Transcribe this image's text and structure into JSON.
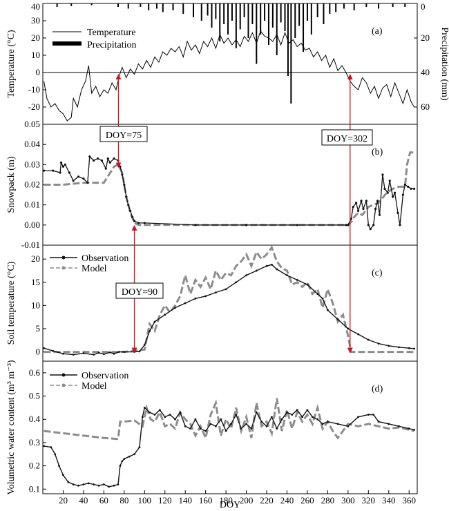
{
  "chart_data": [
    {
      "type": "line",
      "panel_label": "(a)",
      "ylabel": "Temperature (°C)",
      "y2label": "Precipitation (mm)",
      "ylim": [
        -30,
        40
      ],
      "y2lim": [
        70,
        0
      ],
      "yticks": [
        "-20",
        "-10",
        "0",
        "10",
        "20",
        "30",
        "40"
      ],
      "y2ticks": [
        "0",
        "20",
        "40",
        "60"
      ],
      "legend": [
        "Temperature",
        "Precipitation"
      ],
      "series": [
        {
          "name": "Temperature",
          "x": [
            1,
            4,
            8,
            12,
            16,
            20,
            24,
            28,
            30,
            34,
            38,
            42,
            45,
            48,
            52,
            56,
            60,
            64,
            68,
            72,
            75,
            78,
            82,
            86,
            90,
            94,
            98,
            102,
            106,
            110,
            114,
            118,
            122,
            126,
            130,
            134,
            138,
            142,
            146,
            150,
            154,
            158,
            162,
            166,
            170,
            174,
            178,
            182,
            186,
            190,
            194,
            198,
            202,
            206,
            210,
            214,
            218,
            222,
            226,
            230,
            234,
            238,
            242,
            246,
            250,
            254,
            258,
            262,
            266,
            270,
            274,
            278,
            282,
            286,
            290,
            294,
            298,
            302,
            306,
            310,
            314,
            318,
            322,
            326,
            330,
            334,
            338,
            342,
            346,
            350,
            354,
            358,
            362,
            365
          ],
          "y": [
            -5,
            -15,
            -20,
            -18,
            -22,
            -24,
            -28,
            -26,
            -15,
            -20,
            -10,
            -5,
            4,
            -12,
            -8,
            -14,
            -10,
            -12,
            -6,
            -10,
            -2,
            3,
            -3,
            2,
            -1,
            5,
            2,
            7,
            3,
            9,
            6,
            12,
            10,
            14,
            12,
            15,
            9,
            18,
            13,
            16,
            11,
            18,
            15,
            20,
            14,
            22,
            17,
            20,
            16,
            19,
            15,
            21,
            18,
            23,
            17,
            24,
            21,
            20,
            18,
            22,
            16,
            23,
            17,
            19,
            15,
            17,
            13,
            14,
            9,
            12,
            7,
            10,
            3,
            8,
            1,
            4,
            0,
            -5,
            -8,
            -10,
            -3,
            -6,
            -12,
            -8,
            -15,
            -9,
            -7,
            -14,
            -6,
            -12,
            -18,
            -10,
            -17,
            -20
          ]
        },
        {
          "name": "Precipitation",
          "x": [
            14,
            28,
            48,
            74,
            84,
            96,
            104,
            112,
            118,
            128,
            138,
            148,
            156,
            162,
            166,
            170,
            174,
            178,
            182,
            186,
            190,
            194,
            198,
            202,
            206,
            210,
            214,
            218,
            222,
            226,
            230,
            234,
            238,
            241,
            244,
            248,
            252,
            256,
            260,
            264,
            270,
            276,
            282,
            288,
            296,
            306,
            318,
            330,
            344,
            356
          ],
          "y": [
            2,
            1.5,
            1,
            2,
            3,
            2,
            4,
            3,
            5,
            4,
            6,
            8,
            10,
            7,
            14,
            9,
            22,
            12,
            18,
            10,
            26,
            15,
            8,
            20,
            12,
            35,
            18,
            10,
            24,
            14,
            30,
            11,
            16,
            42,
            58,
            20,
            13,
            28,
            10,
            18,
            8,
            12,
            6,
            5,
            3,
            4,
            2,
            3,
            2,
            2
          ]
        }
      ]
    },
    {
      "type": "line",
      "panel_label": "(b)",
      "ylabel": "Snowpack (m)",
      "ylim": [
        -0.01,
        0.05
      ],
      "yticks": [
        "-0.01",
        "0.00",
        "0.01",
        "0.02",
        "0.03",
        "0.04",
        "0.05"
      ],
      "series": [
        {
          "name": "Observation",
          "x": [
            1,
            10,
            17,
            18,
            20,
            22,
            26,
            30,
            35,
            40,
            44,
            46,
            50,
            54,
            58,
            62,
            64,
            66,
            70,
            74,
            76,
            78,
            80,
            82,
            84,
            86,
            88,
            90,
            94,
            100,
            150,
            200,
            250,
            298,
            300,
            303,
            305,
            308,
            310,
            313,
            315,
            318,
            320,
            322,
            325,
            327,
            329,
            331,
            334,
            336,
            339,
            341,
            344,
            346,
            349,
            351,
            354,
            356,
            359,
            362,
            365
          ],
          "y": [
            0.027,
            0.027,
            0.026,
            0.031,
            0.029,
            0.03,
            0.026,
            0.022,
            0.024,
            0.023,
            0.021,
            0.034,
            0.032,
            0.033,
            0.032,
            0.028,
            0.033,
            0.031,
            0.033,
            0.032,
            0.029,
            0.025,
            0.02,
            0.014,
            0.01,
            0.007,
            0.004,
            0.002,
            0.001,
            0.001,
            0.0,
            0.0,
            0.0,
            0.0,
            0.0,
            0.003,
            0.009,
            0.011,
            0.007,
            0.012,
            0.008,
            0.012,
            0.0,
            -0.002,
            0.0,
            0.008,
            0.012,
            0.005,
            0.025,
            0.018,
            0.016,
            0.022,
            0.014,
            0.016,
            0.006,
            0.0,
            0.015,
            0.02,
            0.019,
            0.018,
            0.018
          ]
        },
        {
          "name": "Model",
          "x": [
            1,
            20,
            40,
            60,
            70,
            74,
            78,
            82,
            86,
            90,
            94,
            150,
            200,
            250,
            300,
            304,
            306,
            310,
            314,
            320,
            330,
            338,
            344,
            350,
            356,
            358,
            361,
            365
          ],
          "y": [
            0.02,
            0.02,
            0.021,
            0.021,
            0.029,
            0.03,
            0.026,
            0.014,
            0.006,
            0.001,
            0.0,
            0.0,
            0.0,
            0.0,
            0.0,
            0.002,
            0.004,
            0.006,
            0.005,
            0.009,
            0.011,
            0.016,
            0.018,
            0.019,
            0.019,
            0.03,
            0.036,
            0.036
          ]
        }
      ]
    },
    {
      "type": "line",
      "panel_label": "(c)",
      "ylabel": "Soil temperature (°C)",
      "ylim": [
        -2,
        23
      ],
      "yticks": [
        "0",
        "5",
        "10",
        "15",
        "20"
      ],
      "legend": [
        "Observation",
        "Model"
      ],
      "series": [
        {
          "name": "Observation",
          "x": [
            1,
            10,
            20,
            30,
            40,
            50,
            55,
            60,
            66,
            70,
            75,
            80,
            90,
            95,
            100,
            105,
            110,
            120,
            130,
            140,
            150,
            160,
            170,
            180,
            190,
            200,
            210,
            220,
            225,
            230,
            240,
            250,
            260,
            270,
            275,
            280,
            290,
            300,
            310,
            320,
            330,
            340,
            350,
            360,
            365
          ],
          "y": [
            0.8,
            0.2,
            -0.4,
            -0.6,
            -0.3,
            -0.6,
            -0.2,
            -0.5,
            -0.1,
            -0.4,
            0.0,
            0.0,
            0.0,
            0.1,
            1.5,
            4.5,
            6.5,
            8.0,
            9.5,
            10.5,
            11.5,
            12.0,
            12.8,
            13.5,
            15.0,
            16.5,
            17.5,
            18.5,
            18.8,
            17.8,
            16.5,
            15.5,
            14.5,
            12.5,
            11.5,
            9.0,
            7.0,
            5.0,
            3.8,
            2.6,
            1.8,
            1.3,
            1.0,
            0.8,
            0.7
          ]
        },
        {
          "name": "Model",
          "x": [
            1,
            20,
            40,
            60,
            80,
            100,
            105,
            110,
            115,
            120,
            125,
            130,
            135,
            140,
            145,
            150,
            155,
            160,
            165,
            170,
            175,
            180,
            185,
            190,
            195,
            200,
            205,
            210,
            215,
            220,
            225,
            230,
            235,
            240,
            245,
            250,
            255,
            260,
            265,
            270,
            275,
            280,
            285,
            290,
            295,
            300,
            303,
            310,
            320,
            340,
            365
          ],
          "y": [
            0.0,
            0.0,
            0.0,
            0.0,
            0.0,
            0.5,
            6.0,
            4.5,
            8.0,
            10.0,
            8.5,
            10.0,
            12.0,
            16.5,
            12.5,
            15.5,
            14.0,
            16.0,
            13.5,
            17.5,
            15.5,
            17.0,
            16.5,
            18.5,
            19.5,
            21.0,
            18.5,
            21.5,
            20.0,
            21.0,
            22.5,
            19.5,
            18.0,
            17.5,
            14.5,
            15.0,
            14.0,
            15.0,
            12.5,
            13.5,
            9.5,
            13.5,
            10.5,
            6.5,
            8.0,
            3.5,
            0.0,
            0.0,
            0.0,
            0.0,
            0.0
          ]
        }
      ],
      "xlim": [
        0,
        365
      ]
    },
    {
      "type": "line",
      "panel_label": "(d)",
      "ylabel": "Volumetric water content (m³ m⁻³)",
      "xlabel": "DOY",
      "ylim": [
        0.08,
        0.65
      ],
      "xlim": [
        0,
        365
      ],
      "xticks": [
        "20",
        "40",
        "60",
        "80",
        "100",
        "120",
        "140",
        "160",
        "180",
        "200",
        "220",
        "240",
        "260",
        "280",
        "300",
        "320",
        "340",
        "360"
      ],
      "yticks": [
        "0.1",
        "0.2",
        "0.3",
        "0.4",
        "0.5",
        "0.6"
      ],
      "legend": [
        "Observation",
        "Model"
      ],
      "series": [
        {
          "name": "Observation",
          "x": [
            1,
            8,
            12,
            16,
            20,
            25,
            30,
            35,
            40,
            45,
            50,
            55,
            60,
            65,
            70,
            74,
            76,
            78,
            80,
            85,
            90,
            95,
            98,
            100,
            105,
            110,
            115,
            120,
            125,
            130,
            135,
            140,
            145,
            150,
            155,
            160,
            165,
            170,
            175,
            180,
            185,
            190,
            195,
            200,
            205,
            210,
            215,
            220,
            225,
            230,
            235,
            240,
            245,
            250,
            255,
            260,
            265,
            270,
            275,
            280,
            290,
            300,
            310,
            320,
            325,
            330,
            340,
            350,
            360,
            365
          ],
          "y": [
            0.285,
            0.28,
            0.25,
            0.2,
            0.16,
            0.13,
            0.12,
            0.115,
            0.12,
            0.125,
            0.12,
            0.115,
            0.12,
            0.11,
            0.115,
            0.12,
            0.2,
            0.22,
            0.23,
            0.24,
            0.25,
            0.28,
            0.41,
            0.45,
            0.43,
            0.42,
            0.44,
            0.41,
            0.42,
            0.4,
            0.43,
            0.37,
            0.36,
            0.4,
            0.36,
            0.35,
            0.38,
            0.37,
            0.4,
            0.35,
            0.38,
            0.42,
            0.36,
            0.38,
            0.36,
            0.43,
            0.39,
            0.37,
            0.41,
            0.36,
            0.4,
            0.43,
            0.42,
            0.44,
            0.41,
            0.44,
            0.41,
            0.4,
            0.38,
            0.39,
            0.38,
            0.37,
            0.41,
            0.42,
            0.42,
            0.39,
            0.38,
            0.37,
            0.36,
            0.355
          ]
        },
        {
          "name": "Model",
          "x": [
            1,
            20,
            40,
            60,
            74,
            76,
            80,
            90,
            98,
            102,
            106,
            110,
            115,
            120,
            125,
            130,
            135,
            140,
            145,
            150,
            155,
            160,
            165,
            170,
            175,
            180,
            185,
            190,
            195,
            200,
            205,
            210,
            215,
            220,
            225,
            230,
            235,
            240,
            245,
            250,
            255,
            260,
            265,
            270,
            275,
            280,
            285,
            290,
            300,
            310,
            320,
            330,
            340,
            350,
            360,
            365
          ],
          "y": [
            0.35,
            0.34,
            0.33,
            0.32,
            0.315,
            0.39,
            0.39,
            0.395,
            0.37,
            0.45,
            0.4,
            0.39,
            0.43,
            0.37,
            0.38,
            0.36,
            0.43,
            0.4,
            0.38,
            0.33,
            0.37,
            0.32,
            0.42,
            0.47,
            0.33,
            0.4,
            0.36,
            0.45,
            0.35,
            0.41,
            0.32,
            0.47,
            0.37,
            0.39,
            0.34,
            0.49,
            0.35,
            0.44,
            0.36,
            0.43,
            0.39,
            0.42,
            0.38,
            0.45,
            0.36,
            0.39,
            0.35,
            0.32,
            0.38,
            0.37,
            0.38,
            0.37,
            0.36,
            0.365,
            0.355,
            0.35
          ]
        }
      ]
    }
  ],
  "annotations": [
    {
      "label": "DOY=75"
    },
    {
      "label": "DOY=90"
    },
    {
      "label": "DOY=302"
    }
  ],
  "colors": {
    "observation": "#111111",
    "model": "#8c8c8c",
    "arrow": "#d0131b"
  }
}
